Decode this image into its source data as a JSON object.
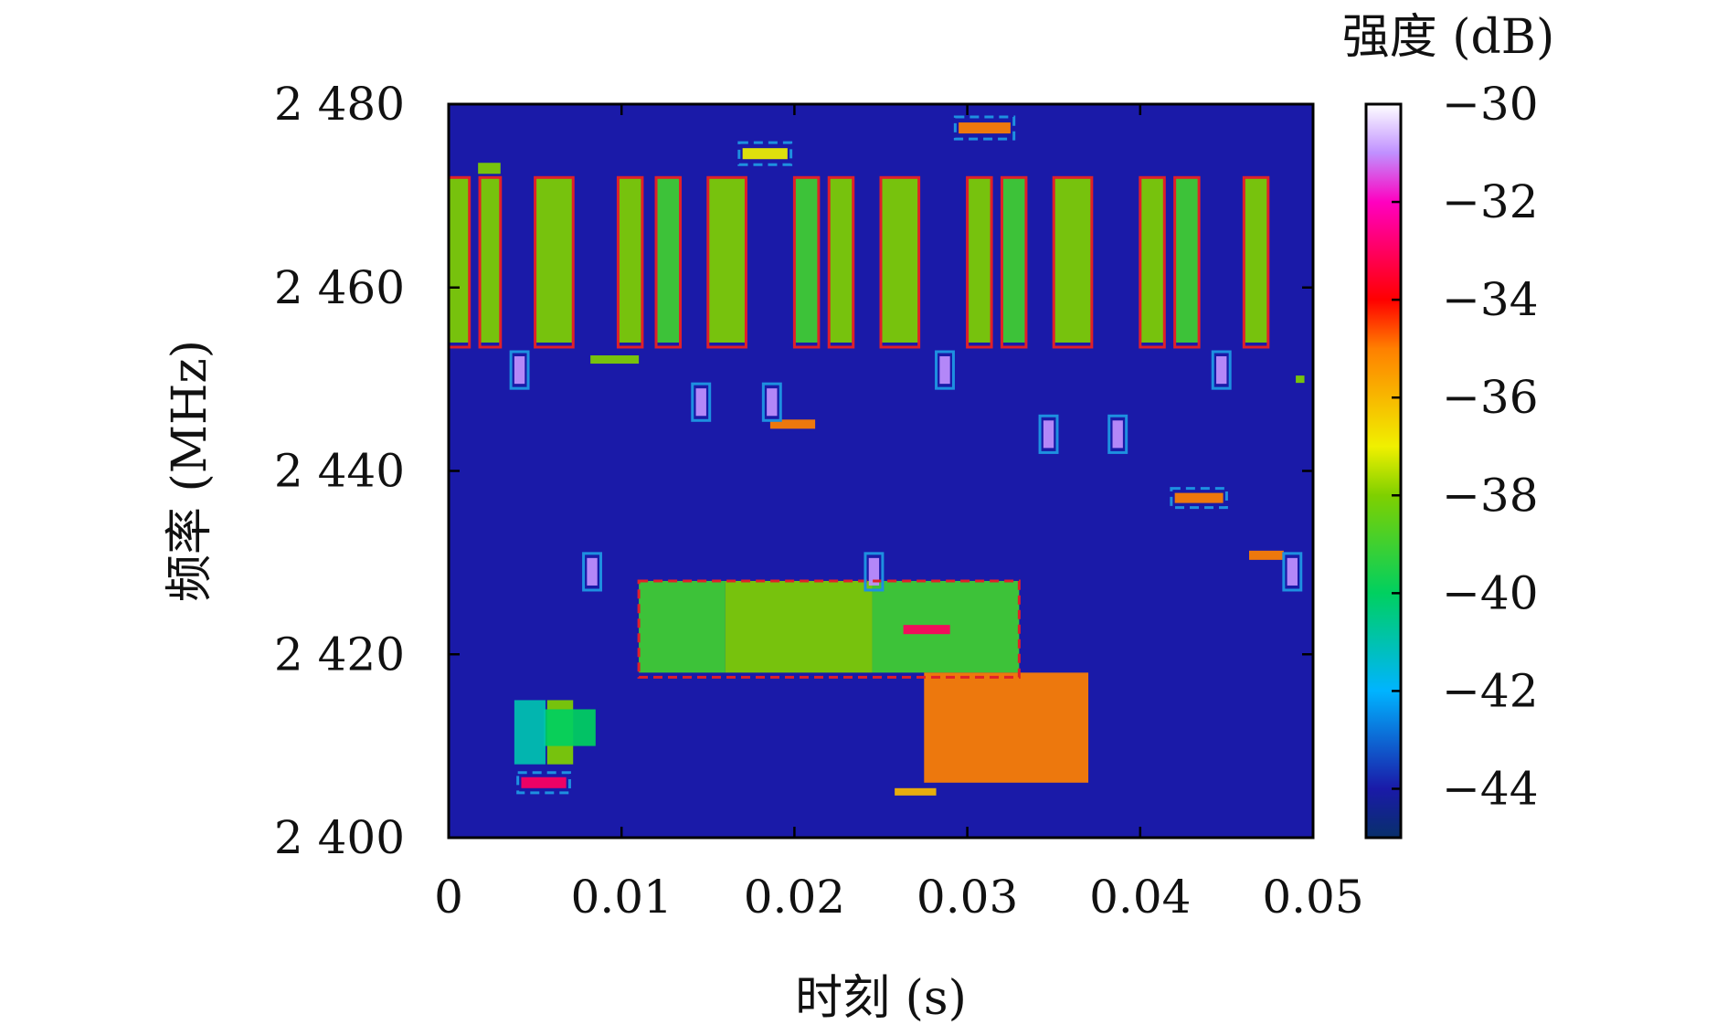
{
  "chart_data": {
    "type": "heatmap",
    "title": "",
    "xlabel": "时刻 (s)",
    "ylabel": "频率 (MHz)",
    "xlim": [
      0,
      0.05
    ],
    "ylim": [
      2400,
      2480
    ],
    "x_ticks": [
      0,
      0.01,
      0.02,
      0.03,
      0.04,
      0.05
    ],
    "x_tick_labels": [
      "0",
      "0.01",
      "0.02",
      "0.03",
      "0.04",
      "0.05"
    ],
    "y_ticks": [
      2400,
      2420,
      2440,
      2460,
      2480
    ],
    "y_tick_labels": [
      "2 400",
      "2 420",
      "2 440",
      "2 460",
      "2 480"
    ],
    "colorbar": {
      "label": "强度 (dB)",
      "range": [
        -45,
        -30
      ],
      "ticks": [
        -30,
        -32,
        -34,
        -36,
        -38,
        -40,
        -42,
        -44
      ],
      "tick_labels": [
        "−30",
        "−32",
        "−34",
        "−36",
        "−38",
        "−40",
        "−42",
        "−44"
      ],
      "colormap_stops": [
        {
          "value": -45,
          "color": "#08306b"
        },
        {
          "value": -44,
          "color": "#1a1aa8"
        },
        {
          "value": -42,
          "color": "#00b4ff"
        },
        {
          "value": -40,
          "color": "#00d060"
        },
        {
          "value": -38,
          "color": "#7fd000"
        },
        {
          "value": -37,
          "color": "#f0f000"
        },
        {
          "value": -35,
          "color": "#ff8000"
        },
        {
          "value": -34,
          "color": "#ff0000"
        },
        {
          "value": -32,
          "color": "#ff00c0"
        },
        {
          "value": -31,
          "color": "#c090ff"
        },
        {
          "value": -30,
          "color": "#ffffff"
        }
      ]
    },
    "background_level_db": -44,
    "signal_bursts": [
      {
        "t": [
          0.0,
          0.0012
        ],
        "f": [
          2454,
          2472
        ],
        "db": -38
      },
      {
        "t": [
          0.0018,
          0.003
        ],
        "f": [
          2454,
          2472
        ],
        "db": -38
      },
      {
        "t": [
          0.005,
          0.0072
        ],
        "f": [
          2454,
          2472
        ],
        "db": -38
      },
      {
        "t": [
          0.0098,
          0.0112
        ],
        "f": [
          2454,
          2472
        ],
        "db": -38
      },
      {
        "t": [
          0.012,
          0.0134
        ],
        "f": [
          2454,
          2472
        ],
        "db": -39
      },
      {
        "t": [
          0.015,
          0.0172
        ],
        "f": [
          2454,
          2472
        ],
        "db": -38
      },
      {
        "t": [
          0.02,
          0.0214
        ],
        "f": [
          2454,
          2472
        ],
        "db": -39
      },
      {
        "t": [
          0.022,
          0.0234
        ],
        "f": [
          2454,
          2472
        ],
        "db": -38
      },
      {
        "t": [
          0.025,
          0.0272
        ],
        "f": [
          2454,
          2472
        ],
        "db": -38
      },
      {
        "t": [
          0.03,
          0.0314
        ],
        "f": [
          2454,
          2472
        ],
        "db": -38
      },
      {
        "t": [
          0.032,
          0.0334
        ],
        "f": [
          2454,
          2472
        ],
        "db": -39
      },
      {
        "t": [
          0.035,
          0.0372
        ],
        "f": [
          2454,
          2472
        ],
        "db": -38
      },
      {
        "t": [
          0.04,
          0.0414
        ],
        "f": [
          2454,
          2472
        ],
        "db": -38
      },
      {
        "t": [
          0.042,
          0.0434
        ],
        "f": [
          2454,
          2472
        ],
        "db": -39
      },
      {
        "t": [
          0.046,
          0.0474
        ],
        "f": [
          2454,
          2472
        ],
        "db": -38
      },
      {
        "t": [
          0.011,
          0.016
        ],
        "f": [
          2418,
          2428
        ],
        "db": -39
      },
      {
        "t": [
          0.016,
          0.0245
        ],
        "f": [
          2418,
          2428
        ],
        "db": -38
      },
      {
        "t": [
          0.0245,
          0.033
        ],
        "f": [
          2418,
          2428
        ],
        "db": -39
      },
      {
        "t": [
          0.0275,
          0.037
        ],
        "f": [
          2406,
          2418
        ],
        "db": -35
      },
      {
        "t": [
          0.0057,
          0.0072
        ],
        "f": [
          2408,
          2415
        ],
        "db": -38
      },
      {
        "t": [
          0.0055,
          0.0085
        ],
        "f": [
          2410,
          2414
        ],
        "db": -40
      },
      {
        "t": [
          0.0038,
          0.0056
        ],
        "f": [
          2408,
          2415
        ],
        "db": -41
      }
    ],
    "short_pulses": [
      {
        "t": [
          0.0017,
          0.003
        ],
        "f": [
          2472.4,
          2473.6
        ],
        "db": -38
      },
      {
        "t": [
          0.017,
          0.0196
        ],
        "f": [
          2474.0,
          2475.2
        ],
        "db": -37
      },
      {
        "t": [
          0.0295,
          0.0325
        ],
        "f": [
          2476.8,
          2478.0
        ],
        "db": -35
      },
      {
        "t": [
          0.0038,
          0.0044
        ],
        "f": [
          2449.5,
          2452.5
        ],
        "db": -31
      },
      {
        "t": [
          0.0082,
          0.011
        ],
        "f": [
          2451.7,
          2452.6
        ],
        "db": -38
      },
      {
        "t": [
          0.0143,
          0.0149
        ],
        "f": [
          2446.0,
          2449.0
        ],
        "db": -31
      },
      {
        "t": [
          0.0184,
          0.019
        ],
        "f": [
          2446.0,
          2449.0
        ],
        "db": -31
      },
      {
        "t": [
          0.0186,
          0.0212
        ],
        "f": [
          2444.6,
          2445.6
        ],
        "db": -35
      },
      {
        "t": [
          0.0284,
          0.029
        ],
        "f": [
          2449.5,
          2452.5
        ],
        "db": -31
      },
      {
        "t": [
          0.0344,
          0.035
        ],
        "f": [
          2442.5,
          2445.5
        ],
        "db": -31
      },
      {
        "t": [
          0.0384,
          0.039
        ],
        "f": [
          2442.5,
          2445.5
        ],
        "db": -31
      },
      {
        "t": [
          0.042,
          0.0448
        ],
        "f": [
          2436.5,
          2437.6
        ],
        "db": -35
      },
      {
        "t": [
          0.0444,
          0.045
        ],
        "f": [
          2449.5,
          2452.5
        ],
        "db": -31
      },
      {
        "t": [
          0.0463,
          0.0483
        ],
        "f": [
          2430.3,
          2431.3
        ],
        "db": -35
      },
      {
        "t": [
          0.0485,
          0.0491
        ],
        "f": [
          2427.5,
          2430.5
        ],
        "db": -31
      },
      {
        "t": [
          0.008,
          0.0086
        ],
        "f": [
          2427.5,
          2430.5
        ],
        "db": -31
      },
      {
        "t": [
          0.0243,
          0.0249
        ],
        "f": [
          2427.5,
          2430.5
        ],
        "db": -31
      },
      {
        "t": [
          0.0263,
          0.029
        ],
        "f": [
          2422.2,
          2423.2
        ],
        "db": -33
      },
      {
        "t": [
          0.0042,
          0.0068
        ],
        "f": [
          2405.4,
          2406.6
        ],
        "db": -33
      },
      {
        "t": [
          0.0258,
          0.0282
        ],
        "f": [
          2404.6,
          2405.4
        ],
        "db": -36
      },
      {
        "t": [
          0.049,
          0.0495
        ],
        "f": [
          2449.6,
          2450.4
        ],
        "db": -38
      }
    ],
    "annotations": {
      "solid_red_boxes": [
        {
          "t": [
            0.0,
            0.0012
          ],
          "f": [
            2453.5,
            2472
          ]
        },
        {
          "t": [
            0.0018,
            0.003
          ],
          "f": [
            2453.5,
            2472
          ]
        },
        {
          "t": [
            0.005,
            0.0072
          ],
          "f": [
            2453.5,
            2472
          ]
        },
        {
          "t": [
            0.0098,
            0.0112
          ],
          "f": [
            2453.5,
            2472
          ]
        },
        {
          "t": [
            0.012,
            0.0134
          ],
          "f": [
            2453.5,
            2472
          ]
        },
        {
          "t": [
            0.015,
            0.0172
          ],
          "f": [
            2453.5,
            2472
          ]
        },
        {
          "t": [
            0.02,
            0.0214
          ],
          "f": [
            2453.5,
            2472
          ]
        },
        {
          "t": [
            0.022,
            0.0234
          ],
          "f": [
            2453.5,
            2472
          ]
        },
        {
          "t": [
            0.025,
            0.0272
          ],
          "f": [
            2453.5,
            2472
          ]
        },
        {
          "t": [
            0.03,
            0.0314
          ],
          "f": [
            2453.5,
            2472
          ]
        },
        {
          "t": [
            0.032,
            0.0334
          ],
          "f": [
            2453.5,
            2472
          ]
        },
        {
          "t": [
            0.035,
            0.0372
          ],
          "f": [
            2453.5,
            2472
          ]
        },
        {
          "t": [
            0.04,
            0.0414
          ],
          "f": [
            2453.5,
            2472
          ]
        },
        {
          "t": [
            0.042,
            0.0434
          ],
          "f": [
            2453.5,
            2472
          ]
        },
        {
          "t": [
            0.046,
            0.0474
          ],
          "f": [
            2453.5,
            2472
          ]
        }
      ],
      "dashed_red_boxes": [
        {
          "t": [
            0.011,
            0.033
          ],
          "f": [
            2417.5,
            2428
          ]
        }
      ],
      "solid_blue_boxes": [
        {
          "t": [
            0.0036,
            0.0046
          ],
          "f": [
            2449,
            2453
          ]
        },
        {
          "t": [
            0.0141,
            0.0151
          ],
          "f": [
            2445.5,
            2449.5
          ]
        },
        {
          "t": [
            0.0182,
            0.0192
          ],
          "f": [
            2445.5,
            2449.5
          ]
        },
        {
          "t": [
            0.0282,
            0.0292
          ],
          "f": [
            2449,
            2453
          ]
        },
        {
          "t": [
            0.0342,
            0.0352
          ],
          "f": [
            2442,
            2446
          ]
        },
        {
          "t": [
            0.0382,
            0.0392
          ],
          "f": [
            2442,
            2446
          ]
        },
        {
          "t": [
            0.0442,
            0.0452
          ],
          "f": [
            2449,
            2453
          ]
        },
        {
          "t": [
            0.0483,
            0.0493
          ],
          "f": [
            2427,
            2431
          ]
        },
        {
          "t": [
            0.0078,
            0.0088
          ],
          "f": [
            2427,
            2431
          ]
        },
        {
          "t": [
            0.0241,
            0.0251
          ],
          "f": [
            2427,
            2431
          ]
        }
      ],
      "dashed_blue_boxes": [
        {
          "t": [
            0.0168,
            0.0198
          ],
          "f": [
            2473.4,
            2475.8
          ]
        },
        {
          "t": [
            0.0293,
            0.0327
          ],
          "f": [
            2476.2,
            2478.6
          ]
        },
        {
          "t": [
            0.0418,
            0.045
          ],
          "f": [
            2436.0,
            2438.1
          ]
        },
        {
          "t": [
            0.004,
            0.007
          ],
          "f": [
            2404.9,
            2407.1
          ]
        }
      ]
    },
    "grid": false
  }
}
